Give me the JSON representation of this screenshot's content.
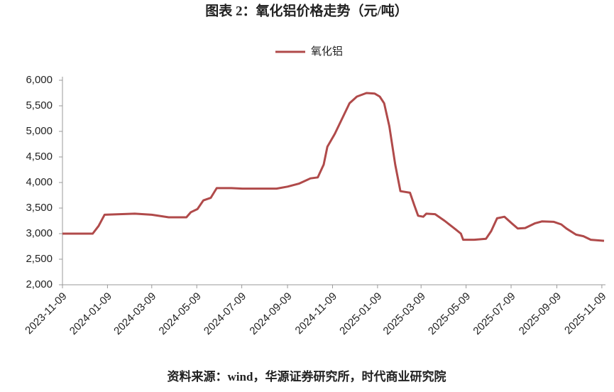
{
  "chart_data": {
    "type": "line",
    "title": "图表 2：氧化铝价格走势（元/吨）",
    "source": "资料来源：wind，华源证券研究所，时代商业研究院",
    "series": [
      {
        "name": "氧化铝",
        "color": "#b04a4a",
        "x": [
          "2023-11-09",
          "2023-12-20",
          "2023-12-28",
          "2024-01-05",
          "2024-02-15",
          "2024-03-09",
          "2024-04-01",
          "2024-04-25",
          "2024-05-01",
          "2024-05-10",
          "2024-05-18",
          "2024-05-28",
          "2024-06-05",
          "2024-06-25",
          "2024-07-10",
          "2024-08-25",
          "2024-09-09",
          "2024-09-25",
          "2024-10-10",
          "2024-10-20",
          "2024-10-28",
          "2024-11-02",
          "2024-11-12",
          "2024-11-22",
          "2024-12-02",
          "2024-12-12",
          "2024-12-25",
          "2025-01-05",
          "2025-01-12",
          "2025-01-18",
          "2025-01-25",
          "2025-02-02",
          "2025-02-09",
          "2025-02-22",
          "2025-02-28",
          "2025-03-05",
          "2025-03-12",
          "2025-03-16",
          "2025-03-28",
          "2025-04-10",
          "2025-04-25",
          "2025-05-02",
          "2025-05-05",
          "2025-05-20",
          "2025-06-05",
          "2025-06-12",
          "2025-06-20",
          "2025-06-30",
          "2025-07-10",
          "2025-07-18",
          "2025-07-28",
          "2025-08-10",
          "2025-08-20",
          "2025-09-05",
          "2025-09-15",
          "2025-09-22",
          "2025-10-05",
          "2025-10-15",
          "2025-10-25",
          "2025-11-12"
        ],
        "values": [
          3000,
          3000,
          3150,
          3370,
          3390,
          3370,
          3320,
          3320,
          3420,
          3480,
          3650,
          3700,
          3890,
          3890,
          3880,
          3880,
          3920,
          3980,
          4080,
          4100,
          4350,
          4700,
          4950,
          5250,
          5550,
          5680,
          5750,
          5740,
          5680,
          5550,
          5100,
          4350,
          3830,
          3800,
          3550,
          3350,
          3330,
          3390,
          3380,
          3250,
          3080,
          3000,
          2880,
          2880,
          2900,
          3050,
          3300,
          3330,
          3200,
          3100,
          3110,
          3200,
          3240,
          3230,
          3180,
          3100,
          2980,
          2950,
          2880,
          2860
        ]
      }
    ],
    "xlim": [
      "2023-11-09",
      "2025-11-12"
    ],
    "xticks": [
      "2023-11-09",
      "2024-01-09",
      "2024-03-09",
      "2024-05-09",
      "2024-07-09",
      "2024-09-09",
      "2024-11-09",
      "2025-01-09",
      "2025-03-09",
      "2025-05-09",
      "2025-07-09",
      "2025-09-09",
      "2025-11-09"
    ],
    "ylim": [
      2000,
      6000
    ],
    "yticks": [
      {
        "value": 2000,
        "label": "2,000"
      },
      {
        "value": 2500,
        "label": "2,500"
      },
      {
        "value": 3000,
        "label": "3,000"
      },
      {
        "value": 3500,
        "label": "3,500"
      },
      {
        "value": 4000,
        "label": "4,000"
      },
      {
        "value": 4500,
        "label": "4,500"
      },
      {
        "value": 5000,
        "label": "5,000"
      },
      {
        "value": 5500,
        "label": "5,500"
      },
      {
        "value": 6000,
        "label": "6,000"
      }
    ],
    "legend": "top"
  }
}
